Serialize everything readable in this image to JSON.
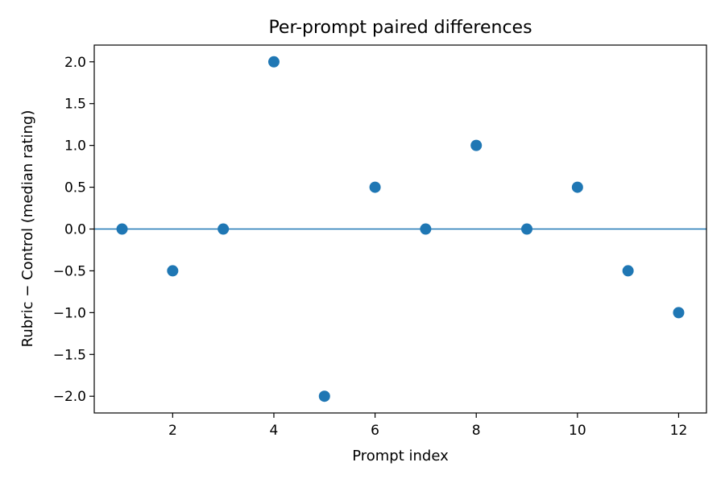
{
  "chart_data": {
    "type": "scatter",
    "title": "Per-prompt paired differences",
    "xlabel": "Prompt index",
    "ylabel": "Rubric − Control (median rating)",
    "x": [
      1,
      2,
      3,
      4,
      5,
      6,
      7,
      8,
      9,
      10,
      11,
      12
    ],
    "y": [
      0.0,
      -0.5,
      0.0,
      2.0,
      -2.0,
      0.5,
      0.0,
      1.0,
      0.0,
      0.5,
      -0.5,
      -1.0
    ],
    "xlim": [
      0.45,
      12.55
    ],
    "ylim": [
      -2.2,
      2.2
    ],
    "xticks": [
      2,
      4,
      6,
      8,
      10,
      12
    ],
    "xtick_labels": [
      "2",
      "4",
      "6",
      "8",
      "10",
      "12"
    ],
    "yticks": [
      -2.0,
      -1.5,
      -1.0,
      -0.5,
      0.0,
      0.5,
      1.0,
      1.5,
      2.0
    ],
    "ytick_labels": [
      "−2.0",
      "−1.5",
      "−1.0",
      "−0.5",
      "0.0",
      "0.5",
      "1.0",
      "1.5",
      "2.0"
    ],
    "reference_line_y": 0,
    "marker_color": "#1f77b4",
    "line_color": "#1f77b4",
    "grid": false,
    "legend": "none"
  }
}
